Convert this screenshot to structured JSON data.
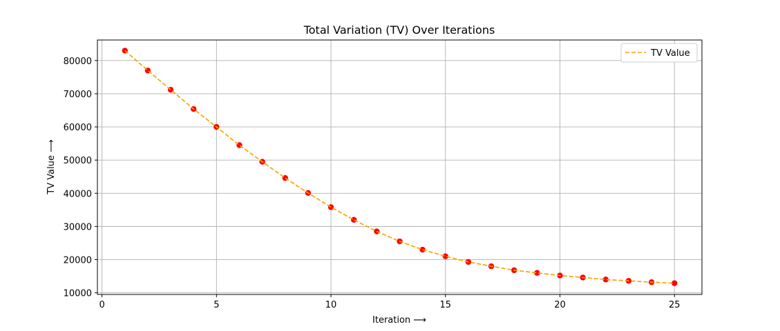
{
  "chart_data": {
    "type": "line",
    "title": "Total Variation (TV) Over Iterations",
    "xlabel": "Iteration ⟶",
    "ylabel": "TV Value ⟶",
    "xlim": [
      -0.2,
      26.2
    ],
    "ylim": [
      9500,
      86200
    ],
    "xticks": [
      0,
      5,
      10,
      15,
      20,
      25
    ],
    "yticks": [
      10000,
      20000,
      30000,
      40000,
      50000,
      60000,
      70000,
      80000
    ],
    "grid": true,
    "legend": {
      "position": "top-right",
      "entries": [
        "TV Value"
      ]
    },
    "series": [
      {
        "name": "TV Value",
        "line_color": "#FFA500",
        "line_style": "dashed",
        "marker_color": "#FF0000",
        "x": [
          1,
          2,
          3,
          4,
          5,
          6,
          7,
          8,
          9,
          10,
          11,
          12,
          13,
          14,
          15,
          16,
          17,
          18,
          19,
          20,
          21,
          22,
          23,
          24,
          25
        ],
        "y": [
          83000,
          77000,
          71200,
          65400,
          60000,
          54500,
          49500,
          44600,
          40100,
          35800,
          32000,
          28500,
          25500,
          23000,
          21000,
          19300,
          18000,
          16800,
          16000,
          15200,
          14600,
          14000,
          13600,
          13200,
          12900
        ]
      }
    ]
  }
}
